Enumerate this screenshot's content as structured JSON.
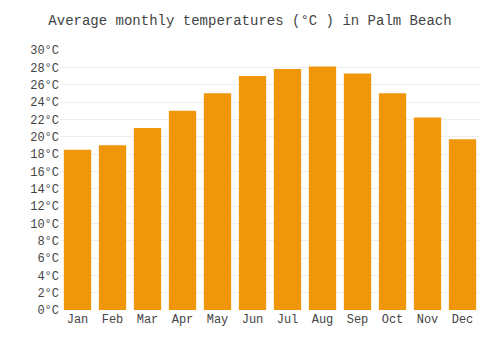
{
  "chart_data": {
    "type": "bar",
    "title": "Average monthly temperatures (°C ) in Palm Beach",
    "categories": [
      "Jan",
      "Feb",
      "Mar",
      "Apr",
      "May",
      "Jun",
      "Jul",
      "Aug",
      "Sep",
      "Oct",
      "Nov",
      "Dec"
    ],
    "values": [
      18.5,
      19.0,
      21.0,
      23.0,
      25.0,
      27.0,
      27.8,
      28.1,
      27.3,
      25.0,
      22.2,
      19.7
    ],
    "color": "#F0960A",
    "ylim": [
      0,
      30
    ],
    "yticks": [
      {
        "value": 0,
        "label": "0°C"
      },
      {
        "value": 2,
        "label": "2°C"
      },
      {
        "value": 4,
        "label": "4°C"
      },
      {
        "value": 6,
        "label": "6°C"
      },
      {
        "value": 8,
        "label": "8°C"
      },
      {
        "value": 10,
        "label": "10°C"
      },
      {
        "value": 12,
        "label": "12°C"
      },
      {
        "value": 14,
        "label": "14°C"
      },
      {
        "value": 16,
        "label": "16°C"
      },
      {
        "value": 18,
        "label": "18°C"
      },
      {
        "value": 20,
        "label": "20°C"
      },
      {
        "value": 22,
        "label": "22°C"
      },
      {
        "value": 24,
        "label": "24°C"
      },
      {
        "value": 26,
        "label": "26°C"
      },
      {
        "value": 28,
        "label": "28°C"
      },
      {
        "value": 30,
        "label": "30°C"
      }
    ],
    "grid": true
  }
}
